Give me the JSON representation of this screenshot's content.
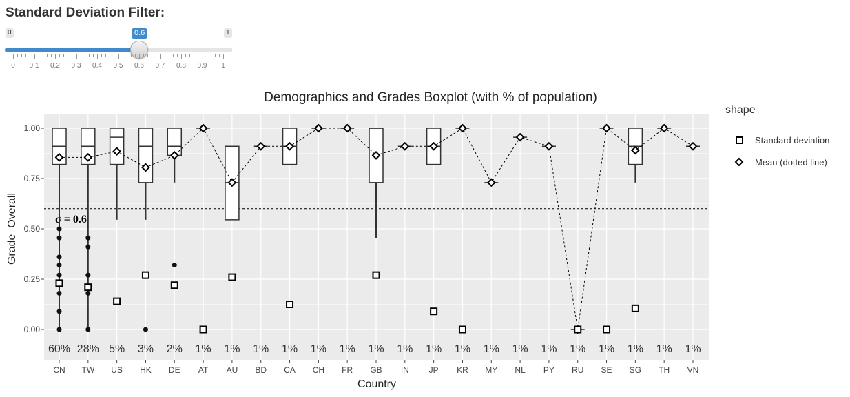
{
  "filter": {
    "title": "Standard Deviation Filter:",
    "min_label": "0",
    "max_label": "1",
    "value": 0.6,
    "value_label": "0.6",
    "ticks": [
      "0",
      "0.1",
      "0.2",
      "0.3",
      "0.4",
      "0.5",
      "0.6",
      "0.7",
      "0.8",
      "0.9",
      "1"
    ],
    "accent": "#428bca"
  },
  "chart_data": {
    "type": "box",
    "title": "Demographics and Grades Boxplot (with % of population)",
    "xlabel": "Country",
    "ylabel": "Grade_Overall",
    "ylim": [
      0,
      1
    ],
    "yticks": [
      "0.00",
      "0.25",
      "0.50",
      "0.75",
      "1.00"
    ],
    "categories": [
      "CN",
      "TW",
      "US",
      "HK",
      "DE",
      "AT",
      "AU",
      "BD",
      "CA",
      "CH",
      "FR",
      "GB",
      "IN",
      "JP",
      "KR",
      "MY",
      "NL",
      "PY",
      "RU",
      "SE",
      "SG",
      "TH",
      "VN"
    ],
    "population_pct": [
      "60%",
      "28%",
      "5%",
      "3%",
      "2%",
      "1%",
      "1%",
      "1%",
      "1%",
      "1%",
      "1%",
      "1%",
      "1%",
      "1%",
      "1%",
      "1%",
      "1%",
      "1%",
      "1%",
      "1%",
      "1%",
      "1%",
      "1%"
    ],
    "boxes": [
      {
        "country": "CN",
        "q1": 0.82,
        "median": 0.91,
        "q3": 1.0,
        "lower": 0.0,
        "upper": 1.0
      },
      {
        "country": "TW",
        "q1": 0.82,
        "median": 0.91,
        "q3": 1.0,
        "lower": 0.0,
        "upper": 1.0
      },
      {
        "country": "US",
        "q1": 0.82,
        "median": 0.955,
        "q3": 1.0,
        "lower": 0.545,
        "upper": 1.0
      },
      {
        "country": "HK",
        "q1": 0.73,
        "median": 0.91,
        "q3": 1.0,
        "lower": 0.545,
        "upper": 1.0
      },
      {
        "country": "DE",
        "q1": 0.865,
        "median": 0.91,
        "q3": 1.0,
        "lower": 0.73,
        "upper": 1.0
      },
      {
        "country": "AT",
        "q1": 1.0,
        "median": 1.0,
        "q3": 1.0,
        "lower": 1.0,
        "upper": 1.0
      },
      {
        "country": "AU",
        "q1": 0.545,
        "median": 0.73,
        "q3": 0.91,
        "lower": 0.545,
        "upper": 0.91
      },
      {
        "country": "BD",
        "q1": 0.91,
        "median": 0.91,
        "q3": 0.91,
        "lower": 0.91,
        "upper": 0.91
      },
      {
        "country": "CA",
        "q1": 0.82,
        "median": 0.91,
        "q3": 1.0,
        "lower": 0.82,
        "upper": 1.0
      },
      {
        "country": "CH",
        "q1": 1.0,
        "median": 1.0,
        "q3": 1.0,
        "lower": 1.0,
        "upper": 1.0
      },
      {
        "country": "FR",
        "q1": 1.0,
        "median": 1.0,
        "q3": 1.0,
        "lower": 1.0,
        "upper": 1.0
      },
      {
        "country": "GB",
        "q1": 0.73,
        "median": 1.0,
        "q3": 1.0,
        "lower": 0.455,
        "upper": 1.0
      },
      {
        "country": "IN",
        "q1": 0.91,
        "median": 0.91,
        "q3": 0.91,
        "lower": 0.91,
        "upper": 0.91
      },
      {
        "country": "JP",
        "q1": 0.82,
        "median": 0.91,
        "q3": 1.0,
        "lower": 0.82,
        "upper": 1.0
      },
      {
        "country": "KR",
        "q1": 1.0,
        "median": 1.0,
        "q3": 1.0,
        "lower": 1.0,
        "upper": 1.0
      },
      {
        "country": "MY",
        "q1": 0.73,
        "median": 0.73,
        "q3": 0.73,
        "lower": 0.73,
        "upper": 0.73
      },
      {
        "country": "NL",
        "q1": 0.955,
        "median": 0.955,
        "q3": 0.955,
        "lower": 0.955,
        "upper": 0.955
      },
      {
        "country": "PY",
        "q1": 0.91,
        "median": 0.91,
        "q3": 0.91,
        "lower": 0.91,
        "upper": 0.91
      },
      {
        "country": "RU",
        "q1": 0.0,
        "median": 0.0,
        "q3": 0.0,
        "lower": 0.0,
        "upper": 0.0
      },
      {
        "country": "SE",
        "q1": 1.0,
        "median": 1.0,
        "q3": 1.0,
        "lower": 1.0,
        "upper": 1.0
      },
      {
        "country": "SG",
        "q1": 0.82,
        "median": 0.91,
        "q3": 1.0,
        "lower": 0.73,
        "upper": 1.0
      },
      {
        "country": "TH",
        "q1": 1.0,
        "median": 1.0,
        "q3": 1.0,
        "lower": 1.0,
        "upper": 1.0
      },
      {
        "country": "VN",
        "q1": 0.91,
        "median": 0.91,
        "q3": 0.91,
        "lower": 0.91,
        "upper": 0.91
      }
    ],
    "outliers": [
      {
        "country": "CN",
        "values": [
          0.5,
          0.455,
          0.36,
          0.32,
          0.27,
          0.18,
          0.09,
          0.0
        ]
      },
      {
        "country": "TW",
        "values": [
          0.455,
          0.41,
          0.27,
          0.18,
          0.0
        ]
      },
      {
        "country": "HK",
        "values": [
          0.27,
          0.0
        ]
      },
      {
        "country": "DE",
        "values": [
          0.32
        ]
      }
    ],
    "series": [
      {
        "name": "Mean (dotted line)",
        "values": [
          0.855,
          0.855,
          0.885,
          0.805,
          0.865,
          1.0,
          0.73,
          0.91,
          0.91,
          1.0,
          1.0,
          0.865,
          0.91,
          0.91,
          1.0,
          0.73,
          0.955,
          0.91,
          0.0,
          1.0,
          0.89,
          1.0,
          0.91
        ]
      },
      {
        "name": "Standard deviation",
        "values": [
          0.23,
          0.21,
          0.14,
          0.27,
          0.22,
          0.0,
          0.26,
          null,
          0.125,
          null,
          null,
          0.27,
          null,
          0.09,
          0.0,
          null,
          null,
          null,
          0.0,
          0.0,
          0.105,
          null,
          null
        ]
      }
    ],
    "threshold": {
      "value": 0.6,
      "label": "σ =  0.6"
    },
    "legend": {
      "title": "shape",
      "position": "right",
      "items": [
        "Standard deviation",
        "Mean (dotted line)"
      ]
    },
    "colors": {
      "panel": "#ebebeb",
      "grid": "#ffffff",
      "ink": "#000000"
    }
  }
}
